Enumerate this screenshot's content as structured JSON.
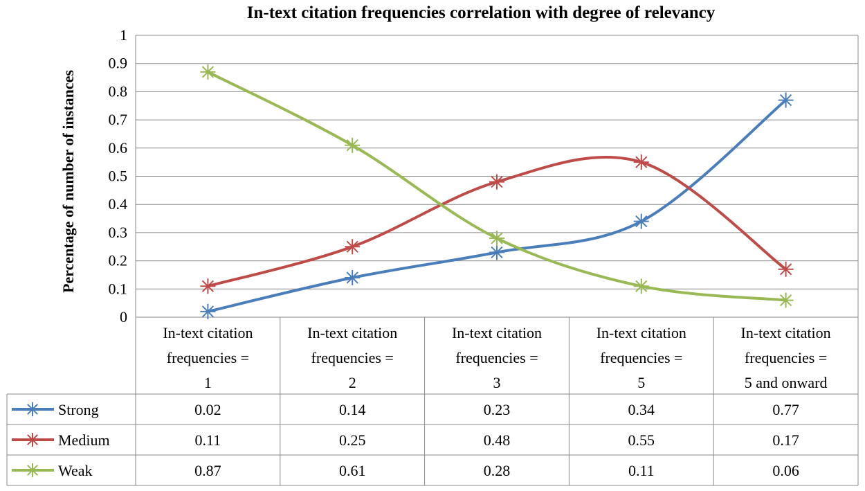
{
  "chart_data": {
    "type": "line",
    "title": "In-text citation frequencies correlation with degree of relevancy",
    "ylabel": "Percentage of number  of instances",
    "xlabel": "",
    "ylim": [
      0,
      1
    ],
    "yticks": [
      "0",
      "0.1",
      "0.2",
      "0.3",
      "0.4",
      "0.5",
      "0.6",
      "0.7",
      "0.8",
      "0.9",
      "1"
    ],
    "smooth": true,
    "grid": true,
    "legend": "data-table",
    "categories": [
      [
        "In-text citation",
        "frequencies =",
        "1"
      ],
      [
        "In-text citation",
        "frequencies =",
        "2"
      ],
      [
        "In-text citation",
        "frequencies =",
        "3"
      ],
      [
        "In-text citation",
        "frequencies =",
        "5"
      ],
      [
        "In-text citation",
        "frequencies =",
        "5 and onward"
      ]
    ],
    "series": [
      {
        "name": "Strong",
        "color": "#4a7ebb",
        "marker": "asterisk",
        "values": [
          0.02,
          0.14,
          0.23,
          0.34,
          0.77
        ],
        "labels": [
          "0.02",
          "0.14",
          "0.23",
          "0.34",
          "0.77"
        ]
      },
      {
        "name": "Medium",
        "color": "#be4b48",
        "marker": "asterisk",
        "values": [
          0.11,
          0.25,
          0.48,
          0.55,
          0.17
        ],
        "labels": [
          "0.11",
          "0.25",
          "0.48",
          "0.55",
          "0.17"
        ]
      },
      {
        "name": "Weak",
        "color": "#98b954",
        "marker": "asterisk",
        "values": [
          0.87,
          0.61,
          0.28,
          0.11,
          0.06
        ],
        "labels": [
          "0.87",
          "0.61",
          "0.28",
          "0.11",
          "0.06"
        ]
      }
    ]
  }
}
